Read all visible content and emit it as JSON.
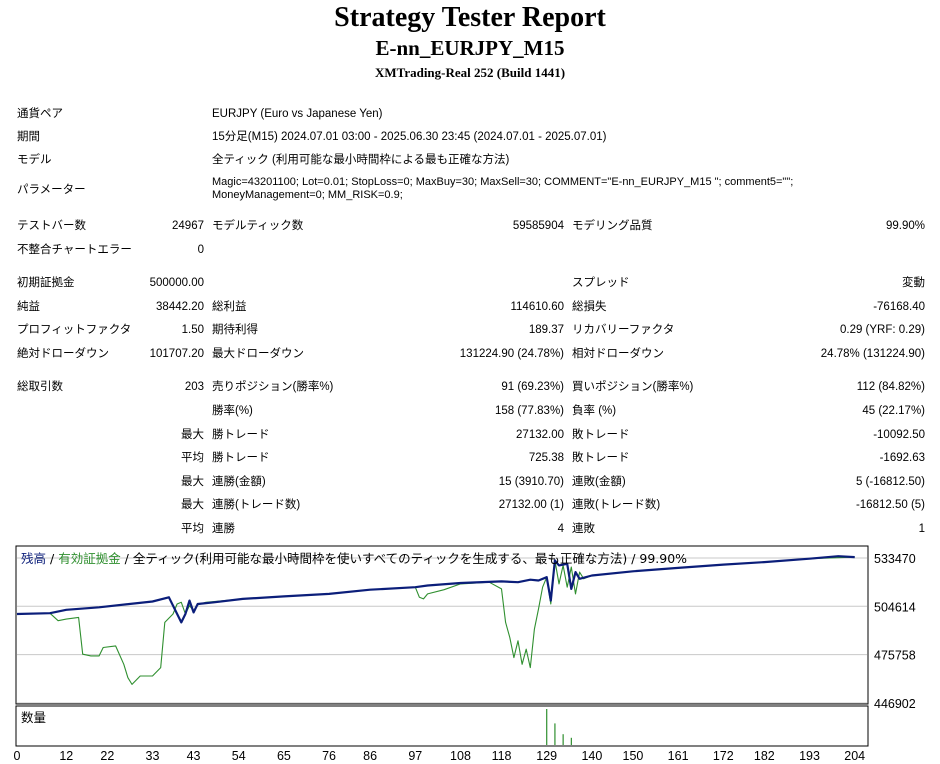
{
  "report": {
    "title": "Strategy Tester Report",
    "subtitle": "E-nn_EURJPY_M15",
    "server": "XMTrading-Real 252 (Build 1441)"
  },
  "info": {
    "symbol_label": "通貨ペア",
    "symbol": "EURJPY (Euro vs Japanese Yen)",
    "period_label": "期間",
    "period": "15分足(M15) 2024.07.01 03:00 - 2025.06.30 23:45 (2024.07.01 - 2025.07.01)",
    "model_label": "モデル",
    "model": "全ティック (利用可能な最小時間枠による最も正確な方法)",
    "params_label": "パラメーター",
    "params": "Magic=43201100; Lot=0.01; StopLoss=0; MaxBuy=30; MaxSell=30; COMMENT=\"E-nn_EURJPY_M15 \"; comment5=\"\"; MoneyManagement=0; MM_RISK=0.9;"
  },
  "stats": {
    "bars_label": "テストバー数",
    "bars": "24967",
    "ticks_label": "モデルティック数",
    "ticks": "59585904",
    "quality_label": "モデリング品質",
    "quality": "99.90%",
    "errors_label": "不整合チャートエラー",
    "errors": "0",
    "deposit_label": "初期証拠金",
    "deposit": "500000.00",
    "spread_label": "スプレッド",
    "spread": "変動",
    "net_label": "純益",
    "net": "38442.20",
    "gross_profit_label": "総利益",
    "gross_profit": "114610.60",
    "gross_loss_label": "総損失",
    "gross_loss": "-76168.40",
    "pf_label": "プロフィットファクタ",
    "pf": "1.50",
    "expected_label": "期待利得",
    "expected": "189.37",
    "recovery_label": "リカバリーファクタ",
    "recovery": "0.29 (YRF: 0.29)",
    "abs_dd_label": "絶対ドローダウン",
    "abs_dd": "101707.20",
    "max_dd_label": "最大ドローダウン",
    "max_dd": "131224.90 (24.78%)",
    "rel_dd_label": "相対ドローダウン",
    "rel_dd": "24.78% (131224.90)",
    "total_trades_label": "総取引数",
    "total_trades": "203",
    "short_label": "売りポジション(勝率%)",
    "short": "91 (69.23%)",
    "long_label": "買いポジション(勝率%)",
    "long": "112 (84.82%)",
    "win_rate_label": "勝率(%)",
    "win_rate": "158 (77.83%)",
    "loss_rate_label": "負率 (%)",
    "loss_rate": "45 (22.17%)",
    "max_prefix": "最大",
    "avg_prefix": "平均",
    "largest_win_label": "勝トレード",
    "largest_win": "27132.00",
    "largest_loss_label": "敗トレード",
    "largest_loss": "-10092.50",
    "avg_win_label": "勝トレード",
    "avg_win": "725.38",
    "avg_loss_label": "敗トレード",
    "avg_loss": "-1692.63",
    "max_consec_wins_label": "連勝(金額)",
    "max_consec_wins": "15 (3910.70)",
    "max_consec_losses_label": "連敗(金額)",
    "max_consec_losses": "5 (-16812.50)",
    "max_consec_profit_label": "連勝(トレード数)",
    "max_consec_profit": "27132.00 (1)",
    "max_consec_loss_label": "連敗(トレード数)",
    "max_consec_loss": "-16812.50 (5)",
    "avg_consec_wins_label": "連勝",
    "avg_consec_wins": "4",
    "avg_consec_losses_label": "連敗",
    "avg_consec_losses": "1"
  },
  "chart_legend": {
    "balance": "残高",
    "sep1": " / ",
    "equity": "有効証拠金",
    "rest": " / 全ティック(利用可能な最小時間枠を使いすべてのティックを生成する、最も正確な方法) / 99.90%",
    "volume": "数量"
  },
  "colors": {
    "balance": "#0b1e7a",
    "equity": "#2f8f2f",
    "grid": "#c8c8c8"
  },
  "chart_data": {
    "type": "line",
    "ylim": [
      446902,
      540000
    ],
    "y_ticks": [
      "533470",
      "504614",
      "475758",
      "446902"
    ],
    "y_tick_values": [
      533470,
      504614,
      475758,
      446902
    ],
    "x_ticks": [
      "0",
      "12",
      "22",
      "33",
      "43",
      "54",
      "65",
      "76",
      "86",
      "97",
      "108",
      "118",
      "129",
      "140",
      "150",
      "161",
      "172",
      "182",
      "193",
      "204"
    ],
    "xlim": [
      0,
      207
    ],
    "series": [
      {
        "name": "残高",
        "x": [
          0,
          8,
          12,
          20,
          33,
          37,
          40,
          41,
          42,
          43,
          44,
          48,
          55,
          65,
          76,
          86,
          97,
          100,
          108,
          118,
          122,
          125,
          127,
          129,
          130,
          131,
          132,
          134,
          135,
          136,
          137,
          140,
          150,
          161,
          172,
          182,
          193,
          200,
          204
        ],
        "y": [
          500000,
          500500,
          502500,
          504000,
          507500,
          510000,
          495000,
          500000,
          508000,
          501000,
          506000,
          507000,
          509000,
          510500,
          512000,
          514500,
          516000,
          517000,
          518500,
          519500,
          519000,
          520500,
          520000,
          522000,
          508000,
          532000,
          529000,
          530000,
          515000,
          525000,
          521000,
          523000,
          525500,
          527500,
          529500,
          531000,
          533000,
          534500,
          534000
        ]
      },
      {
        "name": "有効証拠金",
        "x": [
          0,
          5,
          8,
          10,
          12,
          15,
          16,
          18,
          20,
          21,
          24,
          26,
          27,
          28,
          30,
          33,
          35,
          36,
          38,
          39,
          40,
          41,
          42,
          43,
          44,
          46,
          55,
          65,
          76,
          86,
          97,
          98,
          99,
          100,
          104,
          108,
          115,
          118,
          119,
          120,
          121,
          122,
          123,
          124,
          125,
          126,
          127,
          128,
          129,
          130,
          131,
          132,
          133,
          134,
          135,
          136,
          137,
          138,
          140,
          150,
          161,
          172,
          182,
          193,
          204
        ],
        "y": [
          500000,
          500500,
          500500,
          496000,
          497000,
          498000,
          476000,
          475000,
          475000,
          480000,
          481000,
          470000,
          462000,
          458000,
          463000,
          463000,
          468000,
          495000,
          500000,
          506000,
          507000,
          500000,
          505000,
          502000,
          505500,
          507000,
          509000,
          510500,
          512000,
          514500,
          516000,
          510000,
          509000,
          512000,
          514500,
          518000,
          519000,
          515000,
          495000,
          486000,
          474000,
          484000,
          470000,
          479000,
          468000,
          491000,
          503000,
          516000,
          522000,
          506000,
          532000,
          518000,
          529000,
          516000,
          528000,
          512000,
          525000,
          521000,
          523000,
          525500,
          527500,
          529500,
          531000,
          533000,
          534000
        ]
      }
    ],
    "volume": {
      "x": [
        129,
        131,
        133,
        135
      ],
      "y": [
        1,
        0.6,
        0.3,
        0.2
      ]
    }
  }
}
